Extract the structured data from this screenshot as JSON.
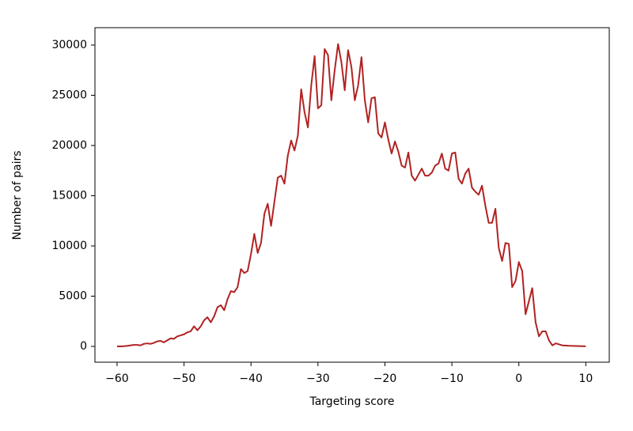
{
  "chart_data": {
    "type": "line",
    "x_label": "Targeting score",
    "y_label": "Number of pairs",
    "x": [
      -60,
      -59.5,
      -59,
      -58.5,
      -58,
      -57.5,
      -57,
      -56.5,
      -56,
      -55.5,
      -55,
      -54.5,
      -54,
      -53.5,
      -53,
      -52.5,
      -52,
      -51.5,
      -51,
      -50.5,
      -50,
      -49.5,
      -49,
      -48.5,
      -48,
      -47.5,
      -47,
      -46.5,
      -46,
      -45.5,
      -45,
      -44.5,
      -44,
      -43.5,
      -43,
      -42.5,
      -42,
      -41.5,
      -41,
      -40.5,
      -40,
      -39.5,
      -39,
      -38.5,
      -38,
      -37.5,
      -37,
      -36.5,
      -36,
      -35.5,
      -35,
      -34.5,
      -34,
      -33.5,
      -33,
      -32.5,
      -32,
      -31.5,
      -31,
      -30.5,
      -30,
      -29.5,
      -29,
      -28.5,
      -28,
      -27.5,
      -27,
      -26.5,
      -26,
      -25.5,
      -25,
      -24.5,
      -24,
      -23.5,
      -23,
      -22.5,
      -22,
      -21.5,
      -21,
      -20.5,
      -20,
      -19.5,
      -19,
      -18.5,
      -18,
      -17.5,
      -17,
      -16.5,
      -16,
      -15.5,
      -15,
      -14.5,
      -14,
      -13.5,
      -13,
      -12.5,
      -12,
      -11.5,
      -11,
      -10.5,
      -10,
      -9.5,
      -9,
      -8.5,
      -8,
      -7.5,
      -7,
      -6.5,
      -6,
      -5.5,
      -5,
      -4.5,
      -4,
      -3.5,
      -3,
      -2.5,
      -2,
      -1.5,
      -1,
      -0.5,
      0,
      0.5,
      1,
      1.5,
      2,
      2.5,
      3,
      3.5,
      4,
      4.5,
      5,
      5.5,
      6,
      6.5,
      7,
      7.5,
      8,
      8.5,
      9,
      9.5,
      10
    ],
    "series": [
      {
        "name": "pairs",
        "color": "#b22222",
        "values": [
          0,
          0,
          20,
          50,
          100,
          150,
          150,
          100,
          250,
          300,
          250,
          350,
          500,
          550,
          400,
          600,
          800,
          750,
          1000,
          1100,
          1200,
          1400,
          1500,
          2000,
          1600,
          2000,
          2600,
          2900,
          2400,
          3000,
          3900,
          4100,
          3600,
          4700,
          5500,
          5400,
          5900,
          7700,
          7300,
          7500,
          9200,
          11200,
          9300,
          10300,
          13200,
          14200,
          12000,
          14400,
          16800,
          17000,
          16200,
          19000,
          20500,
          19500,
          21000,
          25600,
          23300,
          21800,
          26000,
          28900,
          23700,
          24000,
          29600,
          29000,
          24500,
          27500,
          30100,
          28300,
          25500,
          29500,
          27800,
          24500,
          26000,
          28800,
          24500,
          22300,
          24700,
          24800,
          21200,
          20800,
          22300,
          20600,
          19200,
          20400,
          19400,
          18000,
          17800,
          19300,
          17000,
          16500,
          17100,
          17700,
          17000,
          17000,
          17300,
          18000,
          18200,
          19200,
          17700,
          17500,
          19200,
          19300,
          16700,
          16200,
          17200,
          17700,
          15800,
          15400,
          15100,
          16000,
          14000,
          12300,
          12300,
          13700,
          9800,
          8500,
          10300,
          10200,
          5900,
          6500,
          8400,
          7500,
          3200,
          4500,
          5800,
          2400,
          1000,
          1500,
          1500,
          600,
          100,
          300,
          200,
          100,
          80,
          60,
          50,
          40,
          30,
          20,
          10
        ]
      }
    ],
    "xlim": [
      -63.3,
      13.5
    ],
    "ylim": [
      -1575,
      31730
    ],
    "xticks": [
      {
        "value": -60,
        "label": "−60"
      },
      {
        "value": -50,
        "label": "−50"
      },
      {
        "value": -40,
        "label": "−40"
      },
      {
        "value": -30,
        "label": "−30"
      },
      {
        "value": -20,
        "label": "−20"
      },
      {
        "value": -10,
        "label": "−10"
      },
      0,
      10
    ],
    "yticks": [
      0,
      5000,
      10000,
      15000,
      20000,
      25000,
      30000
    ]
  }
}
